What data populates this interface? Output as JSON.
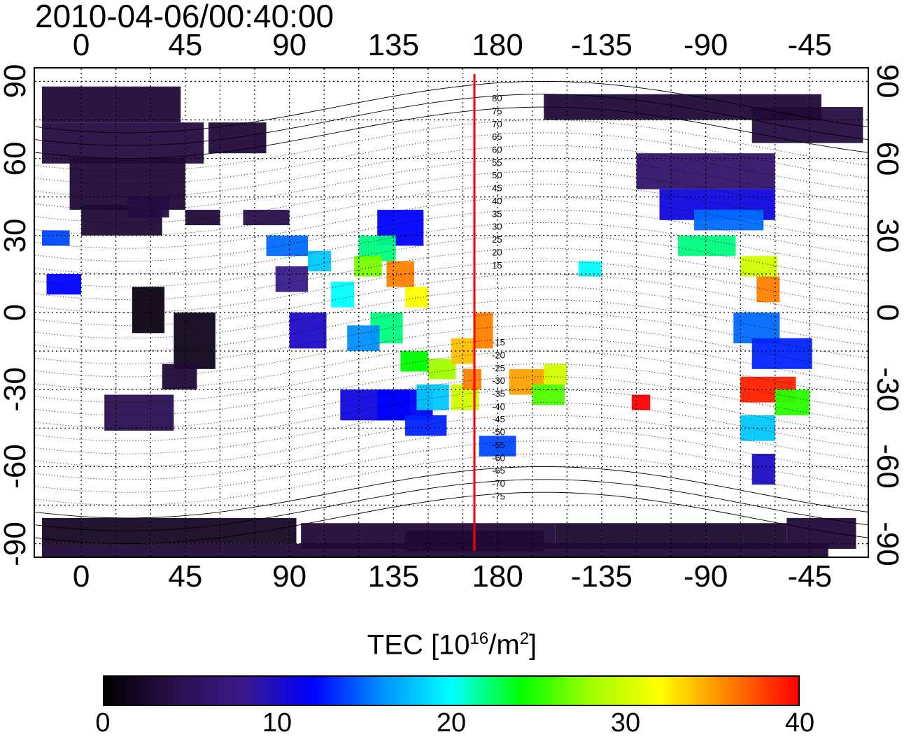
{
  "title": "2010-04-06/00:40:00",
  "map": {
    "top_lon_labels": [
      "0",
      "45",
      "90",
      "135",
      "180",
      "-135",
      "-90",
      "-45"
    ],
    "bottom_lon_labels": [
      "0",
      "45",
      "90",
      "135",
      "180",
      "-135",
      "-90",
      "-45"
    ],
    "lat_labels": [
      "90",
      "60",
      "30",
      "0",
      "-30",
      "-60",
      "-90"
    ],
    "magnetic_latitude_labels": [
      "80",
      "75",
      "70",
      "65",
      "60",
      "55",
      "50",
      "45",
      "40",
      "35",
      "30",
      "25",
      "20",
      "15",
      "-15",
      "-20",
      "-25",
      "-30",
      "-35",
      "-40",
      "-45",
      "-50",
      "-55",
      "-60",
      "-65",
      "-70",
      "-75"
    ],
    "meridian_marker_color": "#ff0000",
    "meridian_marker_lon": 170
  },
  "colorbar": {
    "title_prefix": "TEC  [10",
    "title_exp": "16",
    "title_mid": "/m",
    "title_exp2": "2",
    "title_suffix": "]",
    "tick_labels": [
      "0",
      "10",
      "20",
      "30",
      "40"
    ],
    "min": 0,
    "max": 40,
    "stops": [
      "#000000",
      "#2a0f4a",
      "#3a1a8a",
      "#0000ff",
      "#0090ff",
      "#00ffff",
      "#00ff00",
      "#a0ff00",
      "#ffff00",
      "#ff8000",
      "#ff0000"
    ]
  }
}
